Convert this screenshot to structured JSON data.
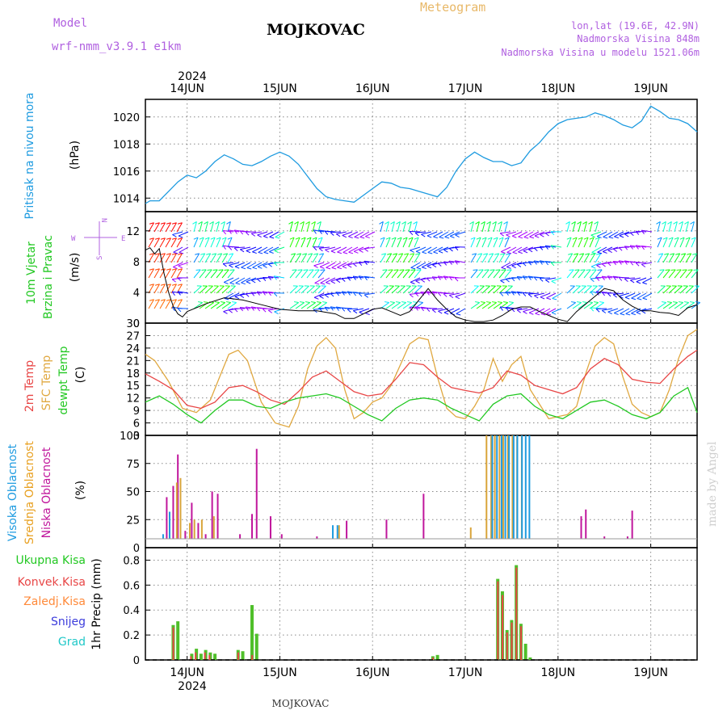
{
  "header": {
    "model_label": "Model",
    "model_name": "wrf-nmm_v3.9.1  e1km",
    "station": "MOJKOVAC",
    "meteogram": "Meteogram",
    "coords": "lon,lat (19.6E, 42.9N)",
    "elevation": "Nadmorska Visina 848m",
    "model_elevation": "Nadmorska Visina u modelu 1521.06m",
    "year_top": "2024",
    "year_bottom": "2024",
    "footer_station": "MOJKOVAC",
    "credit": "made by Angel"
  },
  "colors": {
    "pressure": "#1e9be0",
    "wind_speed": "#000000",
    "t2m": "#e84646",
    "sfc": "#e0a840",
    "dewpt": "#22c822",
    "high_cloud": "#1e9be0",
    "mid_cloud": "#d9a43a",
    "low_cloud": "#c0169c",
    "total_precip": "#4fbf2a",
    "conv_precip": "#e84646",
    "frozen": "#ff8a3a",
    "snow": "#3c3cdc",
    "grad": "#20c8c8",
    "label_cloud_mid": "#e8a020",
    "purple_text": "#b060e0"
  },
  "x_axis": {
    "day_labels": [
      "14JUN",
      "15JUN",
      "16JUN",
      "17JUN",
      "18JUN",
      "19JUN"
    ],
    "days": [
      14,
      15,
      16,
      17,
      18,
      19
    ],
    "start_day": 13.55,
    "end_day": 19.5
  },
  "panels": {
    "pressure": {
      "label_main": "Pritisak na nivou mora",
      "unit": "(hPa)",
      "ylim": [
        1013,
        1021.3
      ],
      "ticks": [
        1014,
        1016,
        1018,
        1020
      ],
      "tick_labels": [
        "1014",
        "1016",
        "1018",
        "1020"
      ]
    },
    "wind": {
      "label_line1": "10m Vjetar",
      "label_line2": "Brzina i Pravac",
      "unit": "(m/s)",
      "compass_n": "N",
      "compass_s": "S",
      "compass_e": "E",
      "compass_w": "W",
      "ylim": [
        0,
        14.5
      ],
      "ticks": [
        0,
        4,
        8,
        12
      ],
      "tick_labels": [
        "0",
        "4",
        "8",
        "12"
      ]
    },
    "temperature": {
      "label_t2m": "2m Temp",
      "label_sfc": "SFC Temp",
      "label_dew": "dewpt Temp",
      "unit": "(C)",
      "ylim": [
        3,
        30
      ],
      "ticks": [
        3,
        6,
        9,
        12,
        15,
        18,
        21,
        24,
        27,
        30
      ],
      "tick_labels": [
        "3",
        "6",
        "9",
        "12",
        "15",
        "18",
        "21",
        "24",
        "27",
        "30"
      ]
    },
    "clouds": {
      "label_high": "Visoka Oblacnost",
      "label_mid": "Srednja Oblacnost",
      "label_low": "Niska Oblacnost",
      "unit": "(%)",
      "ylim": [
        0,
        100
      ],
      "ticks": [
        0,
        25,
        50,
        75,
        100
      ],
      "tick_labels": [
        "0",
        "25",
        "50",
        "75",
        "100"
      ]
    },
    "precip": {
      "label_total": "Ukupna Kisa",
      "label_conv": "Konvek.Kisa",
      "label_frozen": "Zaledj.Kisa",
      "label_snow": "Snijeg",
      "label_grad": "Grad",
      "unit": "1hr Precip (mm)",
      "ylim": [
        0,
        0.9
      ],
      "ticks": [
        0,
        0.2,
        0.4,
        0.6,
        0.8
      ],
      "tick_labels": [
        "0",
        "0.2",
        "0.4",
        "0.6",
        "0.8"
      ]
    }
  },
  "chart_data": [
    {
      "type": "line",
      "name": "pressure",
      "ylabel": "(hPa)",
      "x": [
        13.55,
        13.6,
        13.7,
        13.8,
        13.9,
        14.0,
        14.1,
        14.2,
        14.3,
        14.4,
        14.5,
        14.6,
        14.7,
        14.8,
        14.9,
        15.0,
        15.1,
        15.2,
        15.3,
        15.4,
        15.5,
        15.6,
        15.7,
        15.8,
        15.9,
        16.0,
        16.1,
        16.2,
        16.3,
        16.4,
        16.5,
        16.6,
        16.7,
        16.8,
        16.9,
        17.0,
        17.1,
        17.2,
        17.3,
        17.4,
        17.5,
        17.6,
        17.7,
        17.8,
        17.9,
        18.0,
        18.1,
        18.2,
        18.3,
        18.4,
        18.5,
        18.6,
        18.7,
        18.8,
        18.9,
        19.0,
        19.1,
        19.2,
        19.3,
        19.4,
        19.5
      ],
      "y": [
        1013.6,
        1013.8,
        1013.8,
        1014.5,
        1015.2,
        1015.7,
        1015.5,
        1016.0,
        1016.7,
        1017.2,
        1016.9,
        1016.5,
        1016.4,
        1016.7,
        1017.1,
        1017.4,
        1017.1,
        1016.5,
        1015.6,
        1014.7,
        1014.1,
        1013.9,
        1013.8,
        1013.7,
        1014.2,
        1014.7,
        1015.2,
        1015.1,
        1014.8,
        1014.7,
        1014.5,
        1014.3,
        1014.1,
        1014.8,
        1016.0,
        1016.9,
        1017.4,
        1017.0,
        1016.7,
        1016.7,
        1016.4,
        1016.6,
        1017.5,
        1018.1,
        1018.9,
        1019.5,
        1019.8,
        1019.9,
        1020.0,
        1020.3,
        1020.1,
        1019.8,
        1019.4,
        1019.2,
        1019.7,
        1020.8,
        1020.4,
        1019.9,
        1019.8,
        1019.5,
        1018.9
      ]
    },
    {
      "type": "line",
      "name": "wind_speed",
      "ylabel": "(m/s)",
      "x": [
        13.55,
        13.6,
        13.65,
        13.7,
        13.75,
        13.8,
        13.85,
        13.9,
        13.95,
        14.0,
        14.2,
        14.4,
        14.6,
        14.8,
        15.0,
        15.2,
        15.4,
        15.6,
        15.7,
        15.8,
        15.9,
        16.0,
        16.1,
        16.2,
        16.3,
        16.4,
        16.5,
        16.6,
        16.7,
        16.8,
        16.9,
        17.0,
        17.1,
        17.2,
        17.3,
        17.4,
        17.5,
        17.6,
        17.7,
        17.8,
        17.9,
        18.0,
        18.1,
        18.2,
        18.3,
        18.4,
        18.5,
        18.6,
        18.7,
        18.8,
        18.9,
        19.0,
        19.1,
        19.2,
        19.3,
        19.4,
        19.5
      ],
      "y": [
        9.5,
        9.8,
        9.0,
        9.7,
        6.5,
        4.0,
        2.2,
        1.2,
        0.8,
        1.5,
        2.5,
        3.3,
        3.0,
        2.4,
        1.8,
        1.6,
        1.6,
        1.2,
        0.6,
        0.6,
        1.2,
        1.8,
        2.0,
        1.5,
        1.0,
        1.5,
        3.0,
        4.5,
        3.0,
        1.8,
        0.8,
        0.4,
        0.2,
        0.2,
        0.4,
        1.0,
        1.8,
        2.1,
        2.1,
        1.5,
        1.0,
        0.5,
        0.2,
        1.5,
        2.5,
        3.5,
        4.5,
        4.2,
        3.0,
        2.2,
        1.6,
        1.6,
        1.4,
        1.3,
        1.0,
        2.0,
        2.4
      ]
    },
    {
      "type": "line",
      "name": "2m_temp",
      "ylabel": "(C)",
      "x": [
        13.55,
        13.7,
        13.85,
        14.0,
        14.15,
        14.3,
        14.45,
        14.6,
        14.75,
        14.9,
        15.05,
        15.2,
        15.35,
        15.5,
        15.65,
        15.8,
        15.95,
        16.1,
        16.25,
        16.4,
        16.55,
        16.7,
        16.85,
        17.0,
        17.15,
        17.3,
        17.45,
        17.6,
        17.75,
        17.9,
        18.05,
        18.2,
        18.35,
        18.5,
        18.65,
        18.8,
        18.95,
        19.1,
        19.25,
        19.4,
        19.5
      ],
      "y": [
        17.8,
        16.0,
        14.0,
        10.2,
        9.5,
        11.0,
        14.5,
        15.0,
        13.5,
        11.5,
        10.5,
        13.5,
        17.0,
        18.5,
        16.0,
        13.5,
        12.5,
        13.0,
        16.5,
        20.5,
        20.0,
        17.0,
        14.5,
        13.8,
        13.2,
        14.5,
        18.5,
        17.5,
        15.0,
        14.0,
        13.0,
        14.5,
        19.0,
        21.5,
        20.0,
        16.5,
        15.8,
        15.5,
        19.0,
        22.0,
        23.5
      ]
    },
    {
      "type": "line",
      "name": "sfc_temp",
      "ylabel": "(C)",
      "x": [
        13.55,
        13.65,
        13.8,
        13.95,
        14.1,
        14.25,
        14.35,
        14.45,
        14.55,
        14.65,
        14.8,
        14.95,
        15.1,
        15.2,
        15.3,
        15.4,
        15.5,
        15.6,
        15.7,
        15.8,
        15.9,
        16.0,
        16.1,
        16.2,
        16.3,
        16.4,
        16.5,
        16.6,
        16.7,
        16.8,
        16.9,
        17.0,
        17.1,
        17.2,
        17.3,
        17.4,
        17.5,
        17.6,
        17.7,
        17.8,
        17.9,
        18.0,
        18.1,
        18.2,
        18.3,
        18.4,
        18.5,
        18.6,
        18.7,
        18.8,
        18.9,
        19.0,
        19.1,
        19.2,
        19.3,
        19.4,
        19.5
      ],
      "y": [
        22.5,
        21.0,
        16.0,
        9.5,
        8.5,
        11.5,
        17.0,
        22.5,
        23.5,
        21.0,
        11.0,
        6.0,
        5.0,
        10.0,
        19.0,
        24.5,
        26.5,
        24.0,
        14.0,
        7.0,
        8.5,
        11.0,
        12.0,
        15.0,
        20.0,
        25.0,
        26.5,
        26.0,
        17.0,
        9.5,
        7.5,
        7.0,
        10.0,
        14.0,
        21.5,
        16.0,
        20.0,
        22.0,
        14.0,
        10.5,
        7.0,
        7.5,
        8.0,
        10.0,
        18.0,
        24.5,
        26.5,
        25.0,
        17.0,
        10.5,
        8.5,
        7.5,
        8.5,
        14.0,
        21.5,
        27.0,
        28.5
      ]
    },
    {
      "type": "line",
      "name": "dewpt_temp",
      "ylabel": "(C)",
      "x": [
        13.55,
        13.7,
        13.85,
        14.0,
        14.15,
        14.3,
        14.45,
        14.6,
        14.75,
        14.9,
        15.05,
        15.2,
        15.35,
        15.5,
        15.65,
        15.8,
        15.95,
        16.1,
        16.25,
        16.4,
        16.55,
        16.7,
        16.85,
        17.0,
        17.15,
        17.3,
        17.45,
        17.6,
        17.75,
        17.9,
        18.05,
        18.2,
        18.35,
        18.5,
        18.65,
        18.8,
        18.95,
        19.1,
        19.25,
        19.4,
        19.5
      ],
      "y": [
        11.0,
        12.5,
        10.5,
        8.0,
        6.0,
        9.0,
        11.5,
        11.5,
        10.0,
        9.5,
        11.0,
        12.0,
        12.5,
        13.0,
        12.0,
        10.0,
        8.0,
        6.5,
        9.5,
        11.5,
        12.0,
        11.5,
        9.5,
        8.0,
        6.5,
        10.5,
        12.5,
        13.0,
        10.0,
        8.0,
        7.0,
        9.0,
        11.0,
        11.5,
        10.0,
        8.0,
        7.0,
        8.5,
        12.5,
        14.5,
        8.5
      ]
    },
    {
      "type": "bar",
      "name": "clouds_low",
      "ylabel": "(%)",
      "x": [
        13.6,
        13.78,
        13.85,
        13.9,
        13.98,
        14.05,
        14.12,
        14.2,
        14.27,
        14.33,
        14.5,
        14.57,
        14.7,
        14.75,
        14.9,
        15.02,
        15.4,
        15.5,
        15.62,
        15.72,
        16.15,
        16.38,
        16.45,
        16.52,
        16.55,
        16.78,
        17.25,
        17.4,
        17.55,
        18.25,
        18.3,
        18.5,
        18.6,
        18.75,
        18.8
      ],
      "y": [
        5,
        45,
        55,
        83,
        15,
        40,
        22,
        12,
        50,
        48,
        8,
        12,
        30,
        88,
        28,
        12,
        10,
        8,
        8,
        24,
        25,
        3,
        5,
        4,
        48,
        3,
        5,
        4,
        5,
        28,
        34,
        10,
        8,
        10,
        33
      ]
    },
    {
      "type": "bar",
      "name": "clouds_mid",
      "ylabel": "(%)",
      "x": [
        13.88,
        13.92,
        14.02,
        14.07,
        14.15,
        14.28,
        15.63,
        16.2,
        17.05,
        17.22,
        17.27,
        17.31,
        17.36,
        17.4,
        17.45,
        17.5,
        17.55,
        17.6
      ],
      "y": [
        58,
        62,
        22,
        25,
        25,
        28,
        20,
        5,
        18,
        100,
        100,
        100,
        100,
        100,
        100,
        100,
        100,
        100
      ]
    },
    {
      "type": "bar",
      "name": "clouds_high",
      "ylabel": "(%)",
      "x": [
        13.75,
        13.82,
        15.58,
        15.63,
        16.48,
        17.3,
        17.35,
        17.4,
        17.44,
        17.48,
        17.53,
        17.57,
        17.62,
        17.66,
        17.7
      ],
      "y": [
        12,
        32,
        20,
        20,
        5,
        100,
        100,
        100,
        100,
        100,
        100,
        100,
        100,
        100,
        100
      ]
    },
    {
      "type": "bar",
      "name": "precip_total",
      "ylabel": "1hr Precip (mm)",
      "x": [
        13.85,
        13.9,
        14.05,
        14.1,
        14.15,
        14.2,
        14.25,
        14.3,
        14.55,
        14.6,
        14.7,
        14.75,
        16.65,
        16.7,
        17.35,
        17.4,
        17.45,
        17.5,
        17.55,
        17.6,
        17.65,
        17.7
      ],
      "y": [
        0.28,
        0.31,
        0.05,
        0.09,
        0.05,
        0.08,
        0.06,
        0.05,
        0.08,
        0.07,
        0.44,
        0.21,
        0.03,
        0.04,
        0.65,
        0.55,
        0.24,
        0.32,
        0.76,
        0.29,
        0.13,
        0.02
      ]
    },
    {
      "type": "bar",
      "name": "precip_convective",
      "ylabel": "1hr Precip (mm)",
      "x": [
        13.86,
        14.05,
        14.1,
        14.2,
        14.25,
        14.56,
        14.71,
        16.66,
        17.36,
        17.41,
        17.46,
        17.51,
        17.56,
        17.61
      ],
      "y": [
        0.26,
        0.03,
        0.06,
        0.06,
        0.04,
        0.06,
        0.04,
        0.02,
        0.63,
        0.52,
        0.22,
        0.3,
        0.74,
        0.27
      ]
    }
  ]
}
